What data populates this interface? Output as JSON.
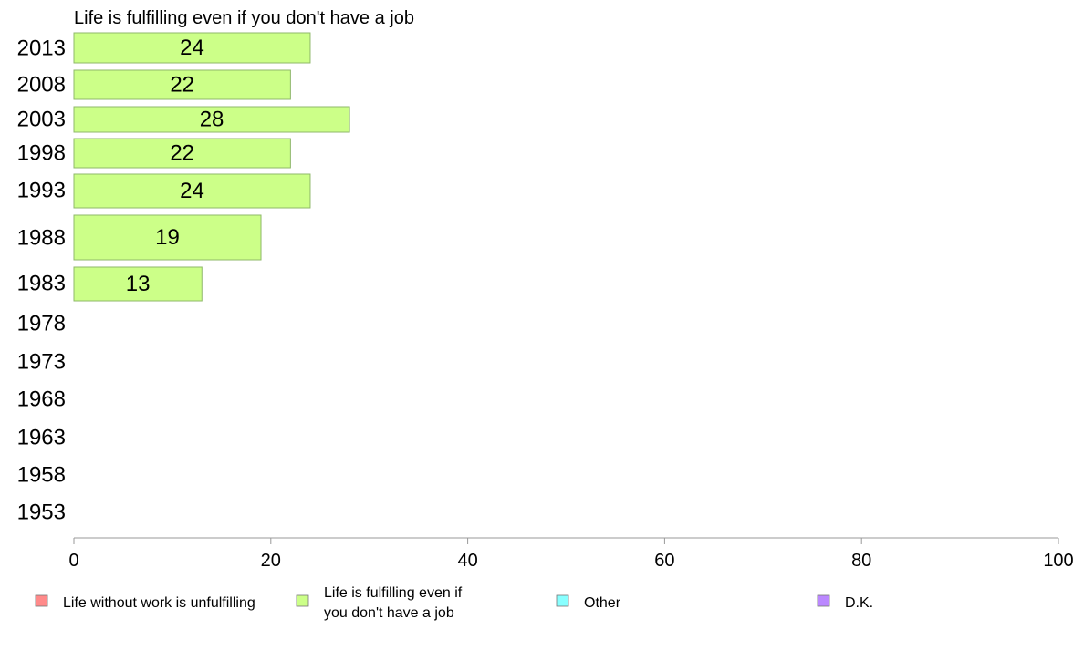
{
  "chart_data": {
    "type": "bar",
    "orientation": "horizontal",
    "title": "Life is fulfilling even if you don't have a job",
    "categories": [
      "2013",
      "2008",
      "2003",
      "1998",
      "1993",
      "1988",
      "1983",
      "1978",
      "1973",
      "1968",
      "1963",
      "1958",
      "1953"
    ],
    "series": [
      {
        "name": "Life is fulfilling even if you don't have a job",
        "color": "#ccff88",
        "values": [
          24,
          22,
          28,
          22,
          24,
          19,
          13,
          null,
          null,
          null,
          null,
          null,
          null
        ]
      }
    ],
    "xlim": [
      0,
      100
    ],
    "xticks": [
      "0",
      "20",
      "40",
      "60",
      "80",
      "100"
    ],
    "legend": {
      "placement": "bottom",
      "items": [
        {
          "label": "Life without work is unfulfilling",
          "lines": [
            "Life without work is unfulfilling"
          ],
          "color": "#ff8a8a"
        },
        {
          "label": "Life is fulfilling even if you don't have a job",
          "lines": [
            "Life is fulfilling even if",
            "you don't have a job"
          ],
          "color": "#ccff88"
        },
        {
          "label": "Other",
          "lines": [
            "Other"
          ],
          "color": "#88ffff"
        },
        {
          "label": "D.K.",
          "lines": [
            "D.K."
          ],
          "color": "#bb88ff"
        }
      ]
    }
  }
}
